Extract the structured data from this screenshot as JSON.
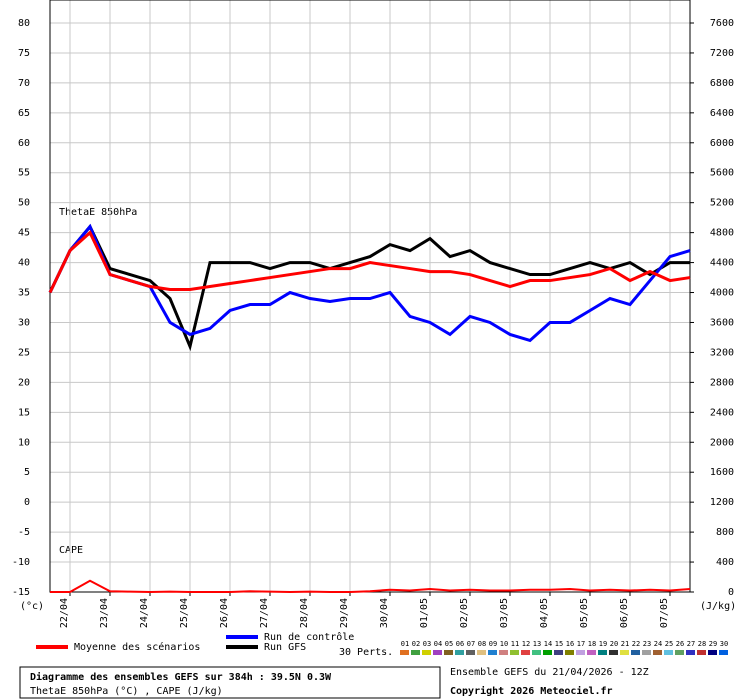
{
  "chart_data": {
    "type": "line",
    "label_theta": "ThetaE 850hPa",
    "label_cape": "CAPE",
    "y_unit": "(°c)",
    "y2_unit": "(J/kg)",
    "xlim": [
      0,
      384
    ],
    "ylim": [
      -15,
      80
    ],
    "y2lim": [
      0,
      7600
    ],
    "yticks": [
      -15,
      -10,
      -5,
      0,
      5,
      10,
      15,
      20,
      25,
      30,
      35,
      40,
      45,
      50,
      55,
      60,
      65,
      70,
      75,
      80
    ],
    "y2ticks": [
      0,
      400,
      800,
      1200,
      1600,
      2000,
      2400,
      2800,
      3200,
      3600,
      4000,
      4400,
      4800,
      5200,
      5600,
      6000,
      6400,
      6800,
      7200,
      7600
    ],
    "xticks": [
      {
        "value": 12,
        "label": "22/04"
      },
      {
        "value": 36,
        "label": "23/04"
      },
      {
        "value": 60,
        "label": "24/04"
      },
      {
        "value": 84,
        "label": "25/04"
      },
      {
        "value": 108,
        "label": "26/04"
      },
      {
        "value": 132,
        "label": "27/04"
      },
      {
        "value": 156,
        "label": "28/04"
      },
      {
        "value": 180,
        "label": "29/04"
      },
      {
        "value": 204,
        "label": "30/04"
      },
      {
        "value": 228,
        "label": "01/05"
      },
      {
        "value": 252,
        "label": "02/05"
      },
      {
        "value": 276,
        "label": "03/05"
      },
      {
        "value": 300,
        "label": "04/05"
      },
      {
        "value": 324,
        "label": "05/05"
      },
      {
        "value": 348,
        "label": "06/05"
      },
      {
        "value": 372,
        "label": "07/05"
      }
    ],
    "grid": true,
    "x": [
      0,
      12,
      24,
      36,
      48,
      60,
      72,
      84,
      96,
      108,
      120,
      132,
      144,
      156,
      168,
      180,
      192,
      204,
      216,
      228,
      240,
      252,
      264,
      276,
      288,
      300,
      312,
      324,
      336,
      348,
      360,
      372,
      384
    ],
    "series": [
      {
        "name": "Run GFS",
        "color": "#000000",
        "values": [
          35,
          42,
          46,
          39,
          38,
          37,
          34,
          26,
          40,
          40,
          40,
          39,
          40,
          40,
          39,
          40,
          41,
          43,
          42,
          44,
          41,
          42,
          40,
          39,
          38,
          38,
          39,
          40,
          39,
          40,
          38,
          40,
          40
        ]
      },
      {
        "name": "Run de contrôle",
        "color": "#0000ff",
        "values": [
          35,
          42,
          46,
          38,
          37,
          36,
          30,
          28,
          29,
          32,
          33,
          33,
          35,
          34,
          33.5,
          34,
          34,
          35,
          31,
          30,
          28,
          31,
          30,
          28,
          27,
          30,
          30,
          32,
          34,
          33,
          37,
          41,
          42
        ]
      },
      {
        "name": "Moyenne des scénarios",
        "color": "#ff0000",
        "values": [
          35,
          42,
          45,
          38,
          37,
          36,
          35.5,
          35.5,
          36,
          36.5,
          37,
          37.5,
          38,
          38.5,
          39,
          39,
          40,
          39.5,
          39,
          38.5,
          38.5,
          38,
          37,
          36,
          37,
          37,
          37.5,
          38,
          39,
          37,
          38.5,
          37,
          37.5
        ]
      },
      {
        "name": "CAPE",
        "color": "#ff0000",
        "axis": "y2",
        "values": [
          0,
          0,
          150,
          10,
          5,
          0,
          5,
          0,
          0,
          0,
          10,
          5,
          0,
          5,
          0,
          0,
          10,
          30,
          20,
          40,
          20,
          30,
          20,
          20,
          30,
          30,
          40,
          20,
          30,
          20,
          30,
          20,
          40
        ]
      }
    ],
    "perts_label": "30 Perts.",
    "perts": [
      {
        "name": "01",
        "color": "#e07020"
      },
      {
        "name": "02",
        "color": "#40a040"
      },
      {
        "name": "03",
        "color": "#d0d000"
      },
      {
        "name": "04",
        "color": "#a040c0"
      },
      {
        "name": "05",
        "color": "#806020"
      },
      {
        "name": "06",
        "color": "#30a0a0"
      },
      {
        "name": "07",
        "color": "#606060"
      },
      {
        "name": "08",
        "color": "#e0c080"
      },
      {
        "name": "09",
        "color": "#2080d0"
      },
      {
        "name": "10",
        "color": "#d08080"
      },
      {
        "name": "11",
        "color": "#90c030"
      },
      {
        "name": "12",
        "color": "#e04040"
      },
      {
        "name": "13",
        "color": "#40c080"
      },
      {
        "name": "14",
        "color": "#00a000"
      },
      {
        "name": "15",
        "color": "#404080"
      },
      {
        "name": "16",
        "color": "#808000"
      },
      {
        "name": "17",
        "color": "#c0a0e0"
      },
      {
        "name": "18",
        "color": "#c060c0"
      },
      {
        "name": "19",
        "color": "#008080"
      },
      {
        "name": "20",
        "color": "#303030"
      },
      {
        "name": "21",
        "color": "#e0e040"
      },
      {
        "name": "22",
        "color": "#2060a0"
      },
      {
        "name": "23",
        "color": "#a0a0a0"
      },
      {
        "name": "24",
        "color": "#a06030"
      },
      {
        "name": "25",
        "color": "#60c0e0"
      },
      {
        "name": "26",
        "color": "#60a060"
      },
      {
        "name": "27",
        "color": "#3030c0"
      },
      {
        "name": "28",
        "color": "#c03030"
      },
      {
        "name": "29",
        "color": "#000080"
      },
      {
        "name": "30",
        "color": "#0060e0"
      }
    ],
    "info_title": "Diagramme des ensembles GEFS sur 384h : 39.5N 0.3W",
    "info_sub": "ThetaE 850hPa (°C) , CAPE (J/kg)",
    "run_info": "Ensemble GEFS du 21/04/2026 - 12Z",
    "copyright": "Copyright 2026 Meteociel.fr"
  }
}
